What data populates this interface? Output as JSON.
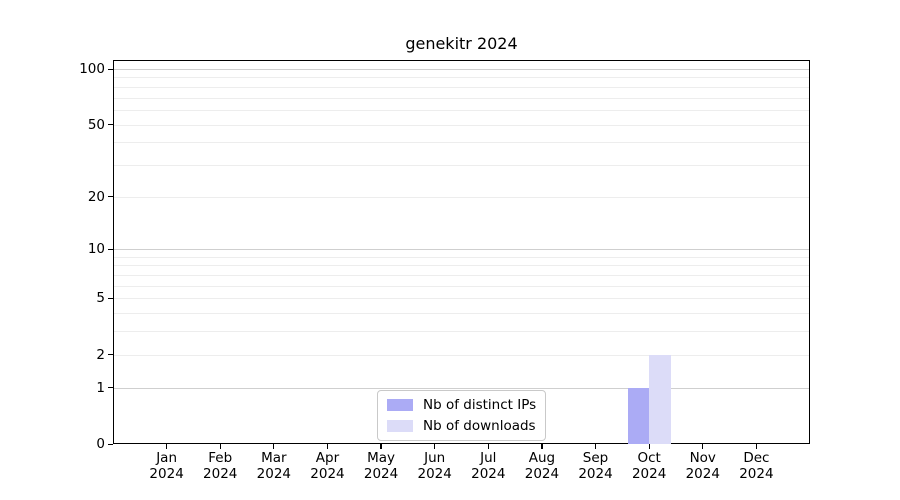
{
  "chart_data": {
    "type": "bar",
    "title": "genekitr 2024",
    "x_axis": {
      "categories": [
        "Jan",
        "Feb",
        "Mar",
        "Apr",
        "May",
        "Jun",
        "Jul",
        "Aug",
        "Sep",
        "Oct",
        "Nov",
        "Dec"
      ],
      "year_label": "2024"
    },
    "y_axis": {
      "scale": "log1p",
      "tick_values": [
        0,
        1,
        2,
        5,
        10,
        20,
        50,
        100
      ],
      "minor_gridlines": [
        2,
        3,
        4,
        5,
        6,
        7,
        8,
        9,
        20,
        30,
        40,
        50,
        60,
        70,
        80,
        90
      ],
      "major_gridlines": [
        1,
        10,
        100
      ],
      "ylim": [
        0,
        112
      ]
    },
    "series": [
      {
        "name": "Nb of distinct IPs",
        "color": "#ababf5",
        "values": [
          0,
          0,
          0,
          0,
          0,
          0,
          0,
          0,
          0,
          1,
          0,
          0
        ]
      },
      {
        "name": "Nb of downloads",
        "color": "#dcdcf8",
        "values": [
          0,
          0,
          0,
          0,
          0,
          0,
          0,
          0,
          0,
          2,
          0,
          0
        ]
      }
    ],
    "legend": {
      "position": "bottom-center",
      "border_color": "#c9c9c9"
    },
    "grid": true,
    "frame_color": "#000000"
  }
}
